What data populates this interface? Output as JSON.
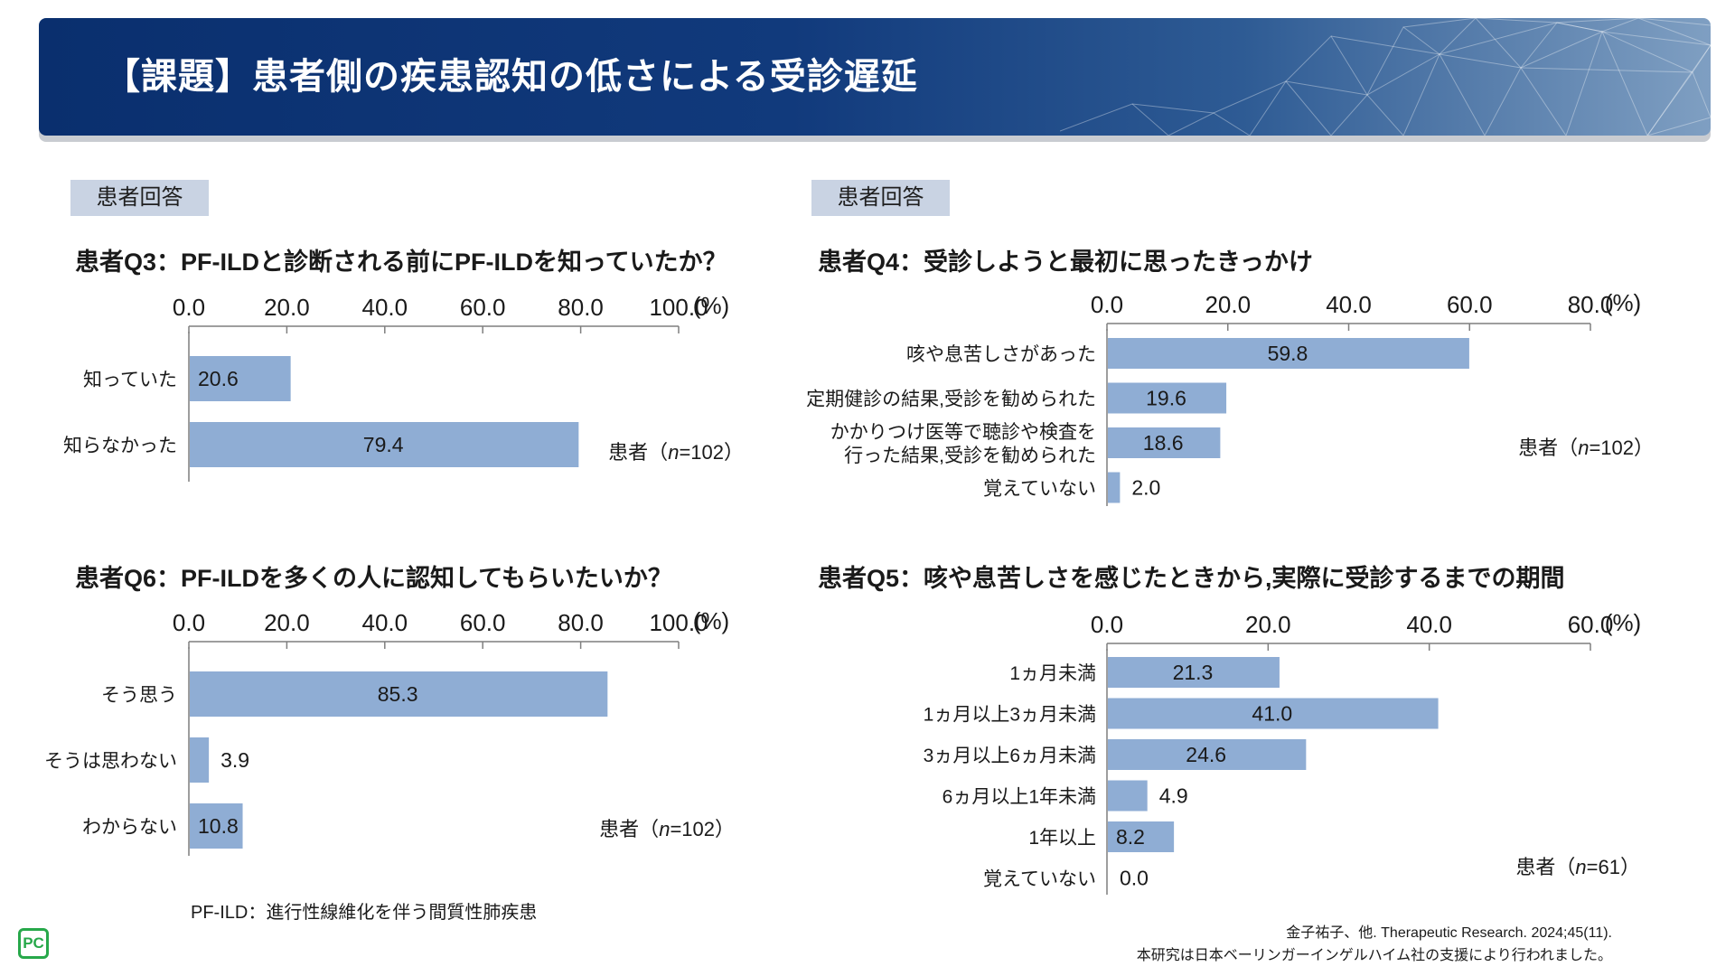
{
  "header": {
    "title": "【課題】患者側の疾患認知の低さによる受診遅延"
  },
  "tags": {
    "left": "患者回答",
    "right": "患者回答"
  },
  "chart_data": [
    {
      "id": "q3",
      "type": "bar",
      "orientation": "horizontal",
      "title": "患者Q3：PF-ILDと診断される前にPF-ILDを知っていたか？",
      "categories": [
        "知っていた",
        "知らなかった"
      ],
      "values": [
        20.6,
        79.4
      ],
      "labels": [
        "20.6",
        "79.4"
      ],
      "xlim": [
        0,
        100
      ],
      "ticks": [
        "0.0",
        "20.0",
        "40.0",
        "60.0",
        "80.0",
        "100.0"
      ],
      "unit": "(%)",
      "sample": {
        "prefix": "患者（",
        "n": "n",
        "suffix": "=102）"
      },
      "color": "#8fadd4"
    },
    {
      "id": "q6",
      "type": "bar",
      "orientation": "horizontal",
      "title": "患者Q6：PF-ILDを多くの人に認知してもらいたいか？",
      "categories": [
        "そう思う",
        "そうは思わない",
        "わからない"
      ],
      "values": [
        85.3,
        3.9,
        10.8
      ],
      "labels": [
        "85.3",
        "3.9",
        "10.8"
      ],
      "xlim": [
        0,
        100
      ],
      "ticks": [
        "0.0",
        "20.0",
        "40.0",
        "60.0",
        "80.0",
        "100.0"
      ],
      "unit": "(%)",
      "sample": {
        "prefix": "患者（",
        "n": "n",
        "suffix": "=102）"
      },
      "color": "#8fadd4"
    },
    {
      "id": "q4",
      "type": "bar",
      "orientation": "horizontal",
      "title": "患者Q4：受診しようと最初に思ったきっかけ",
      "categories": [
        "咳や息苦しさがあった",
        "定期健診の結果,受診を勧められた",
        "かかりつけ医等で聴診や検査を\n行った結果,受診を勧められた",
        "覚えていない"
      ],
      "values": [
        59.8,
        19.6,
        18.6,
        2.0
      ],
      "labels": [
        "59.8",
        "19.6",
        "18.6",
        "2.0"
      ],
      "xlim": [
        0,
        80
      ],
      "ticks": [
        "0.0",
        "20.0",
        "40.0",
        "60.0",
        "80.0"
      ],
      "unit": "(%)",
      "sample": {
        "prefix": "患者（",
        "n": "n",
        "suffix": "=102）"
      },
      "color": "#8fadd4"
    },
    {
      "id": "q5",
      "type": "bar",
      "orientation": "horizontal",
      "title": "患者Q5：咳や息苦しさを感じたときから,実際に受診するまでの期間",
      "categories": [
        "1ヵ月未満",
        "1ヵ月以上3ヵ月未満",
        "3ヵ月以上6ヵ月未満",
        "6ヵ月以上1年未満",
        "1年以上",
        "覚えていない"
      ],
      "values": [
        21.3,
        41.0,
        24.6,
        4.9,
        8.2,
        0.0
      ],
      "labels": [
        "21.3",
        "41.0",
        "24.6",
        "4.9",
        "8.2",
        "0.0"
      ],
      "xlim": [
        0,
        60
      ],
      "ticks": [
        "0.0",
        "20.0",
        "40.0",
        "60.0"
      ],
      "unit": "(%)",
      "sample": {
        "prefix": "患者（",
        "n": "n",
        "suffix": "=61）"
      },
      "color": "#8fadd4"
    }
  ],
  "footnote": "PF-ILD：進行性線維化を伴う間質性肺疾患",
  "citation": {
    "line1": "金子祐子、他. Therapeutic Research. 2024;45(11).",
    "line2": "本研究は日本ベーリンガーインゲルハイム社の支援により行われました。"
  },
  "logo": {
    "text": "PC",
    "color": "#27a84a"
  }
}
